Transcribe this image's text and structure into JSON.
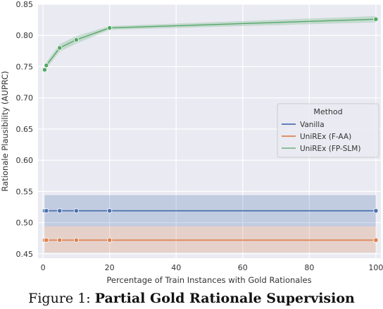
{
  "chart_data": {
    "type": "line",
    "xlabel": "Percentage of Train Instances with Gold Rationales",
    "ylabel": "Rationale Plausibility (AUPRC)",
    "xlim": [
      -1.5,
      101.5
    ],
    "ylim": [
      0.443,
      0.85
    ],
    "xticks": [
      0,
      20,
      40,
      60,
      80,
      100
    ],
    "yticks": [
      0.45,
      0.5,
      0.55,
      0.6,
      0.65,
      0.7,
      0.75,
      0.8,
      0.85
    ],
    "grid": true,
    "legend": {
      "title": "Method",
      "placement": "center-right",
      "entries": [
        "Vanilla",
        "UniREx (F-AA)",
        "UniREx (FP-SLM)"
      ]
    },
    "series": [
      {
        "name": "Vanilla",
        "color": "#4c72b0",
        "x": [
          0.5,
          1,
          5,
          10,
          20,
          100
        ],
        "y": [
          0.519,
          0.519,
          0.519,
          0.519,
          0.519,
          0.519
        ],
        "band_lower": [
          0.494,
          0.494,
          0.494,
          0.494,
          0.494,
          0.494
        ],
        "band_upper": [
          0.544,
          0.544,
          0.544,
          0.544,
          0.544,
          0.544
        ]
      },
      {
        "name": "UniREx (F-AA)",
        "color": "#dd8452",
        "x": [
          0.5,
          1,
          5,
          10,
          20,
          100
        ],
        "y": [
          0.472,
          0.472,
          0.472,
          0.472,
          0.472,
          0.472
        ],
        "band_lower": [
          0.452,
          0.452,
          0.452,
          0.452,
          0.452,
          0.452
        ],
        "band_upper": [
          0.494,
          0.494,
          0.494,
          0.494,
          0.494,
          0.494
        ]
      },
      {
        "name": "UniREx (FP-SLM)",
        "color": "#55a868",
        "x": [
          0.5,
          1,
          5,
          10,
          20,
          100
        ],
        "y": [
          0.745,
          0.752,
          0.78,
          0.793,
          0.812,
          0.826
        ],
        "band_lower": [
          0.74,
          0.747,
          0.774,
          0.787,
          0.809,
          0.821
        ],
        "band_upper": [
          0.75,
          0.757,
          0.786,
          0.799,
          0.815,
          0.831
        ]
      }
    ]
  },
  "caption": {
    "prefix": "Figure 1: ",
    "bold": "Partial Gold Rationale Supervision"
  }
}
